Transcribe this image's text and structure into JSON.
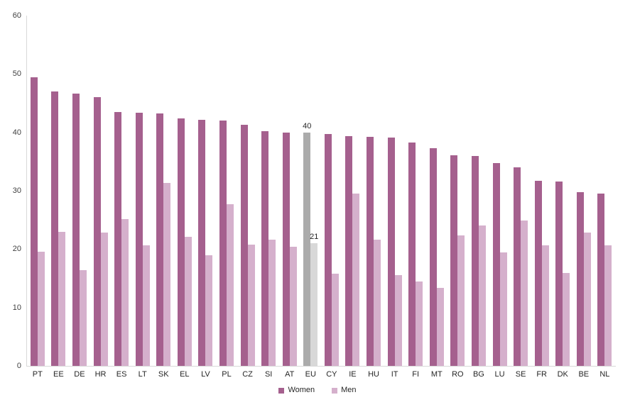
{
  "chart_data": {
    "type": "bar",
    "title": "",
    "xlabel": "",
    "ylabel": "",
    "ylim": [
      0,
      60
    ],
    "yticks": [
      0,
      10,
      20,
      30,
      40,
      50,
      60
    ],
    "grid": false,
    "legend_position": "bottom",
    "categories": [
      "PT",
      "EE",
      "DE",
      "HR",
      "ES",
      "LT",
      "SK",
      "EL",
      "LV",
      "PL",
      "CZ",
      "SI",
      "AT",
      "EU",
      "CY",
      "IE",
      "HU",
      "IT",
      "FI",
      "MT",
      "RO",
      "BG",
      "LU",
      "SE",
      "FR",
      "DK",
      "BE",
      "NL"
    ],
    "series": [
      {
        "name": "Women",
        "color": "#a5608e",
        "values": [
          49.4,
          47.0,
          46.6,
          46.0,
          43.5,
          43.4,
          43.3,
          42.4,
          42.2,
          42.0,
          41.3,
          40.2,
          40.0,
          40,
          39.7,
          39.4,
          39.2,
          39.1,
          38.3,
          37.3,
          36.1,
          35.9,
          34.7,
          34.0,
          31.7,
          31.6,
          29.7,
          29.5
        ]
      },
      {
        "name": "Men",
        "color": "#d5b0cc",
        "values": [
          19.5,
          22.9,
          16.4,
          22.8,
          25.1,
          20.7,
          31.3,
          22.1,
          19.0,
          27.7,
          20.8,
          21.6,
          20.4,
          21,
          15.8,
          29.5,
          21.6,
          15.6,
          14.4,
          13.4,
          22.4,
          24.0,
          19.4,
          24.9,
          20.6,
          15.9,
          22.8,
          20.7
        ]
      }
    ],
    "highlight": {
      "category": "EU",
      "women_color": "#ababab",
      "men_color": "#d8d8d8"
    },
    "annotations": [
      {
        "category": "EU",
        "series": "Women",
        "text": "40"
      },
      {
        "category": "EU",
        "series": "Men",
        "text": "21"
      }
    ]
  },
  "legend": {
    "women_label": "Women",
    "men_label": "Men"
  },
  "style": {
    "axis_line_color": "#d9d9d9",
    "tick_label_color": "#404040",
    "category_label_color": "#262626"
  }
}
